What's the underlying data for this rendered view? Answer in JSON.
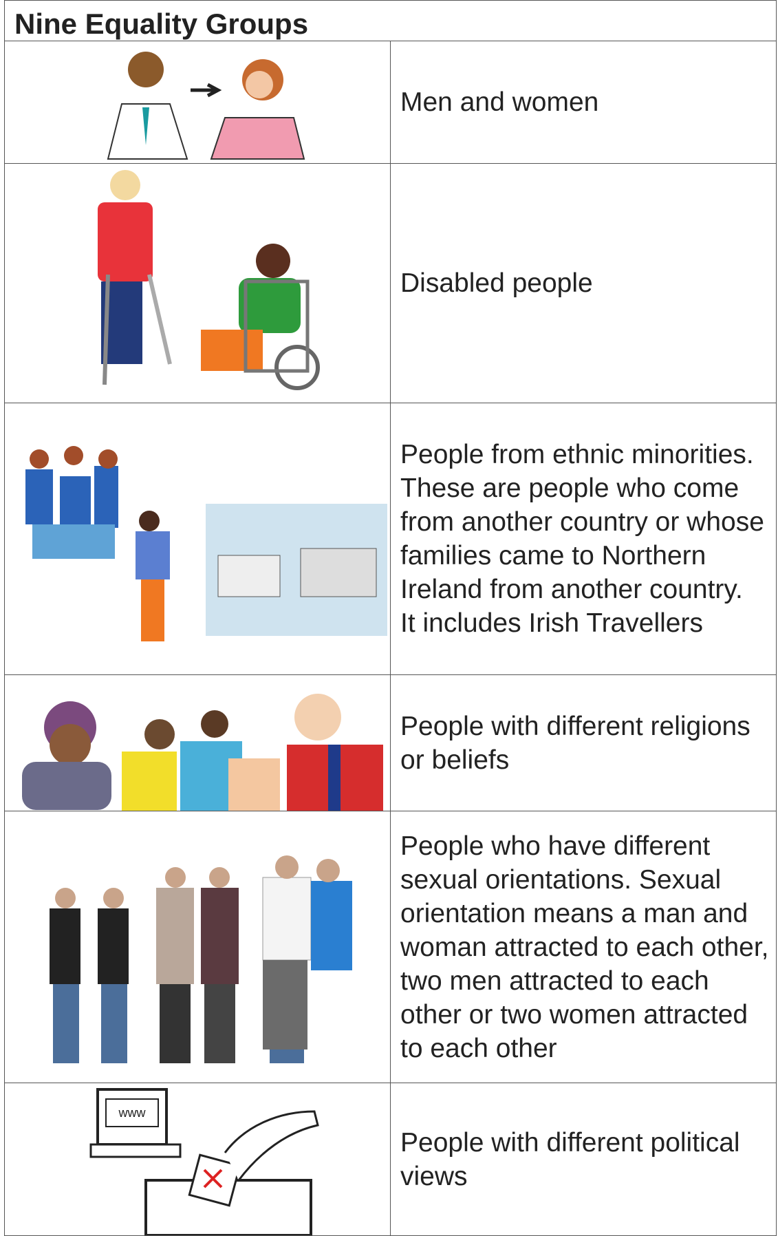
{
  "header": {
    "title": "Nine Equality Groups"
  },
  "table": {
    "rows": [
      {
        "text": "Men and women"
      },
      {
        "text": "Disabled people"
      },
      {
        "text": "People from ethnic minorities. These are people who come from another country or whose families came to Northern Ireland from another country.\nIt includes Irish Travellers"
      },
      {
        "text": "People with different religions or beliefs"
      },
      {
        "text": "People who have different sexual orientations. Sexual orientation means a man and woman attracted to each other, two men attracted to each other or two women attracted to each other"
      },
      {
        "text": "People with different political views"
      }
    ]
  }
}
